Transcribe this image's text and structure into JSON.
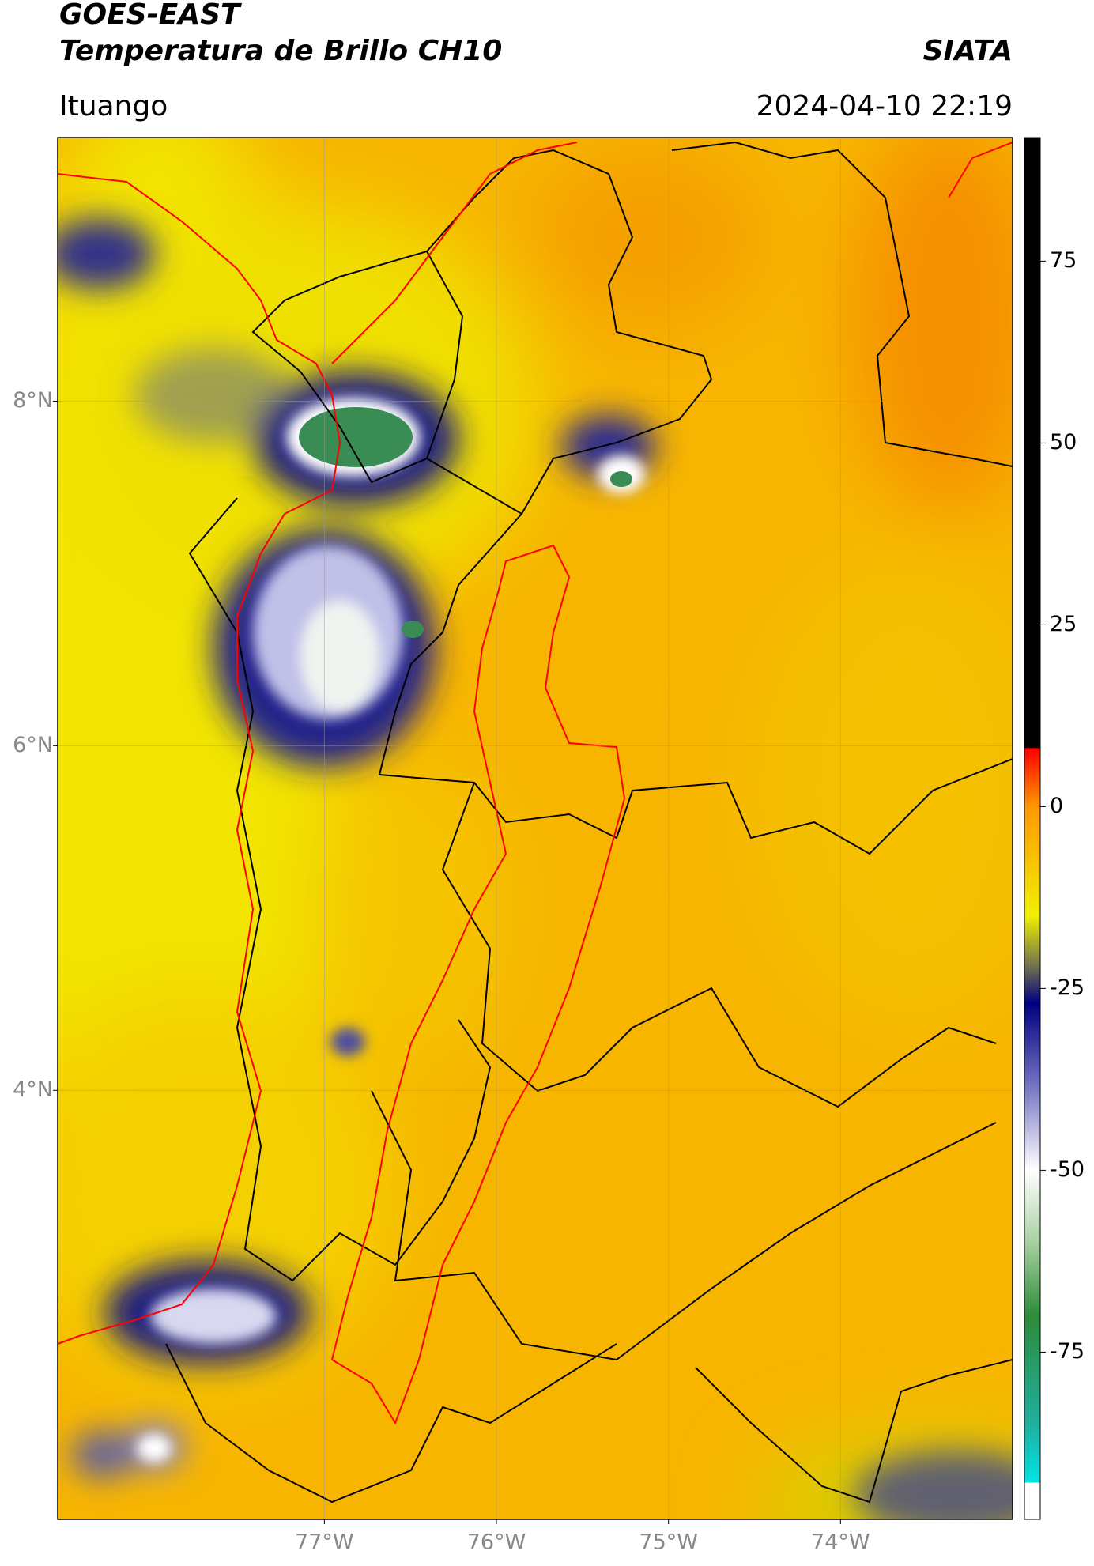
{
  "header": {
    "title": "GOES-EAST",
    "subtitle": "Temperatura de Brillo CH10",
    "source": "SIATA",
    "location": "Ituango",
    "datetime": "2024-04-10 22:19"
  },
  "map": {
    "xlim": [
      -78.55,
      -73.0
    ],
    "ylim": [
      1.51,
      9.53
    ],
    "xticks": [
      {
        "value": -77,
        "label": "77°W"
      },
      {
        "value": -76,
        "label": "76°W"
      },
      {
        "value": -75,
        "label": "75°W"
      },
      {
        "value": -74,
        "label": "74°W"
      }
    ],
    "yticks": [
      {
        "value": 8,
        "label": "8°N"
      },
      {
        "value": 6,
        "label": "6°N"
      },
      {
        "value": 4,
        "label": "4°N"
      }
    ],
    "grid": true
  },
  "colorbar": {
    "lim": [
      -98,
      92
    ],
    "ticks": [
      75,
      50,
      25,
      0,
      -25,
      -50,
      -75
    ],
    "stops": [
      {
        "value": -98,
        "color": "#ffffff"
      },
      {
        "value": -93,
        "color": "#ffffff"
      },
      {
        "value": -92.9,
        "color": "#00e5e5"
      },
      {
        "value": -85,
        "color": "#20b0a0"
      },
      {
        "value": -70,
        "color": "#2e8b3a"
      },
      {
        "value": -60,
        "color": "#a8d0a0"
      },
      {
        "value": -50,
        "color": "#ffffff"
      },
      {
        "value": -38,
        "color": "#7070c0"
      },
      {
        "value": -27,
        "color": "#000080"
      },
      {
        "value": -22,
        "color": "#707050"
      },
      {
        "value": -15,
        "color": "#f0f000"
      },
      {
        "value": 0,
        "color": "#ff9800"
      },
      {
        "value": 8,
        "color": "#ff0000"
      },
      {
        "value": 8.1,
        "color": "#000000"
      },
      {
        "value": 92,
        "color": "#000000"
      }
    ]
  }
}
